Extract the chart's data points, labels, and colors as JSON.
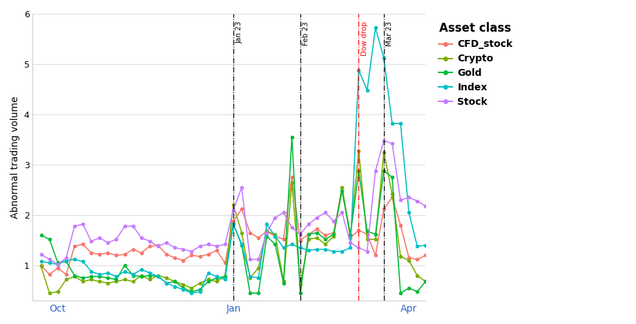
{
  "title": "",
  "ylabel": "Abnormal trading volume",
  "xlabel": "",
  "ylim": [
    0.3,
    6.0
  ],
  "background_color": "#ffffff",
  "grid_color": "#dddddd",
  "series": {
    "CFD_stock": {
      "color": "#f8766d",
      "values": [
        1.0,
        0.82,
        0.95,
        0.82,
        1.38,
        1.42,
        1.25,
        1.22,
        1.25,
        1.2,
        1.22,
        1.32,
        1.25,
        1.38,
        1.4,
        1.22,
        1.15,
        1.1,
        1.2,
        1.18,
        1.22,
        1.3,
        1.05,
        1.88,
        2.12,
        1.65,
        1.55,
        1.68,
        1.58,
        1.52,
        2.75,
        1.5,
        1.62,
        1.72,
        1.6,
        1.65,
        2.55,
        1.55,
        1.7,
        1.62,
        1.2,
        2.12,
        2.35,
        1.8,
        1.15,
        1.12,
        1.2
      ]
    },
    "Crypto": {
      "color": "#7cae00",
      "values": [
        0.98,
        0.45,
        0.48,
        0.72,
        0.78,
        0.68,
        0.72,
        0.68,
        0.65,
        0.68,
        0.72,
        0.68,
        0.8,
        0.72,
        0.8,
        0.75,
        0.68,
        0.62,
        0.55,
        0.65,
        0.72,
        0.68,
        0.78,
        2.2,
        1.65,
        0.75,
        0.95,
        1.68,
        1.62,
        0.68,
        2.65,
        0.62,
        1.52,
        1.55,
        1.42,
        1.58,
        2.55,
        1.6,
        3.28,
        1.52,
        1.52,
        3.25,
        2.42,
        1.18,
        1.1,
        0.8,
        0.68
      ]
    },
    "Gold": {
      "color": "#00ba38",
      "values": [
        1.6,
        1.52,
        1.05,
        1.08,
        0.8,
        0.75,
        0.78,
        0.78,
        0.75,
        0.72,
        1.0,
        0.8,
        0.78,
        0.8,
        0.78,
        0.65,
        0.68,
        0.55,
        0.48,
        0.52,
        0.68,
        0.75,
        0.78,
        1.82,
        1.4,
        0.45,
        0.45,
        1.58,
        1.42,
        0.65,
        3.55,
        0.45,
        1.62,
        1.65,
        1.52,
        1.62,
        2.48,
        1.6,
        2.88,
        1.68,
        1.62,
        2.88,
        2.75,
        0.45,
        0.55,
        0.48,
        0.68
      ]
    },
    "Index": {
      "color": "#00bfc4",
      "values": [
        1.08,
        1.05,
        1.02,
        1.1,
        1.12,
        1.08,
        0.88,
        0.82,
        0.85,
        0.78,
        0.88,
        0.82,
        0.92,
        0.85,
        0.78,
        0.65,
        0.58,
        0.52,
        0.45,
        0.48,
        0.85,
        0.78,
        0.72,
        1.82,
        1.42,
        0.78,
        0.75,
        1.82,
        1.58,
        1.35,
        1.42,
        1.35,
        1.3,
        1.32,
        1.32,
        1.28,
        1.28,
        1.35,
        4.88,
        4.48,
        5.72,
        5.12,
        3.82,
        3.82,
        2.05,
        1.38,
        1.4
      ]
    },
    "Stock": {
      "color": "#c77cff",
      "values": [
        1.22,
        1.12,
        1.02,
        1.15,
        1.78,
        1.82,
        1.48,
        1.55,
        1.45,
        1.52,
        1.78,
        1.78,
        1.55,
        1.48,
        1.38,
        1.45,
        1.35,
        1.32,
        1.28,
        1.38,
        1.42,
        1.38,
        1.42,
        2.1,
        2.55,
        1.12,
        1.12,
        1.65,
        1.95,
        2.05,
        1.75,
        1.62,
        1.82,
        1.95,
        2.05,
        1.88,
        2.05,
        1.45,
        1.35,
        1.28,
        2.88,
        3.48,
        3.42,
        2.3,
        2.35,
        2.28,
        2.18
      ]
    }
  },
  "n_points": 47,
  "vlines": [
    {
      "x_idx": 23,
      "label": "Jan 23",
      "color": "black",
      "linestyle": "-.",
      "label_color": "black"
    },
    {
      "x_idx": 31,
      "label": "Feb 23",
      "color": "black",
      "linestyle": "-.",
      "label_color": "black"
    },
    {
      "x_idx": 38,
      "label": "Dow drop",
      "color": "red",
      "linestyle": "-.",
      "label_color": "red"
    },
    {
      "x_idx": 41,
      "label": "Mar 23",
      "color": "black",
      "linestyle": "-.",
      "label_color": "black"
    }
  ],
  "xtick_labels": [
    "Oct",
    "Jan",
    "Apr"
  ],
  "xtick_positions": [
    2,
    23,
    44
  ],
  "legend_title": "Asset class",
  "marker": "o",
  "markersize": 3,
  "linewidth": 1.2
}
